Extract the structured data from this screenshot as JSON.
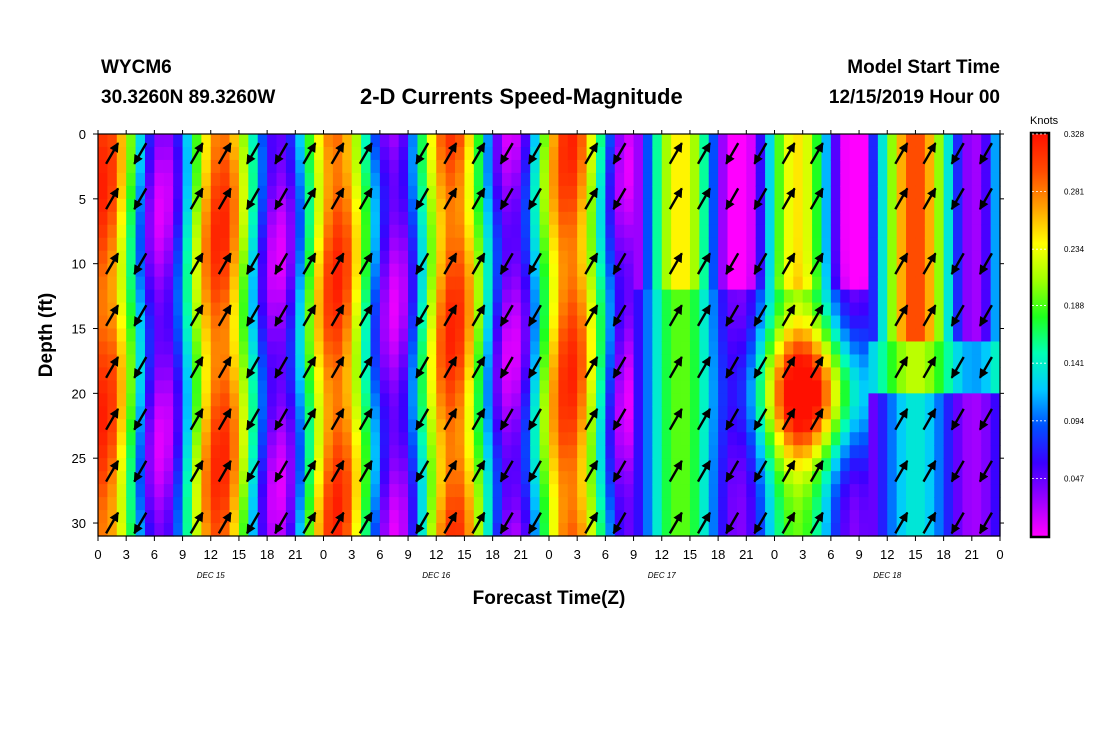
{
  "header": {
    "station": "WYCM6",
    "coords": "30.3260N 89.3260W",
    "title": "2-D Currents Speed-Magnitude",
    "start_label": "Model Start Time",
    "start_value": "12/15/2019 Hour 00"
  },
  "chart_data": {
    "type": "heatmap",
    "title": "2-D Currents Speed-Magnitude",
    "xlabel": "Forecast Time(Z)",
    "ylabel": "Depth (ft)",
    "x_ticks": [
      "0",
      "3",
      "6",
      "9",
      "12",
      "15",
      "18",
      "21",
      "0",
      "3",
      "6",
      "9",
      "12",
      "15",
      "18",
      "21",
      "0",
      "3",
      "6",
      "9",
      "12",
      "15",
      "18",
      "21",
      "0",
      "3",
      "6",
      "9",
      "12",
      "15",
      "18",
      "21",
      "0"
    ],
    "date_labels": [
      {
        "label": "DEC 15",
        "hour": 12
      },
      {
        "label": "DEC 16",
        "hour": 36
      },
      {
        "label": "DEC 17",
        "hour": 60
      },
      {
        "label": "DEC 18",
        "hour": 84
      }
    ],
    "xlim_hours": [
      0,
      96
    ],
    "y_ticks": [
      0,
      5,
      10,
      15,
      20,
      25,
      30
    ],
    "ylim": [
      0,
      31
    ],
    "y_inverted": true,
    "colorbar": {
      "unit": "Knots",
      "ticks": [
        "0.047",
        "0.094",
        "0.141",
        "0.188",
        "0.234",
        "0.281",
        "0.328"
      ],
      "range": [
        0.0,
        0.328
      ]
    },
    "arrow_depths": [
      1.5,
      5,
      10,
      14,
      18,
      22,
      26,
      30
    ],
    "arrow_hours": [
      1.5,
      4.5,
      10.5,
      13.5,
      16.5,
      19.5,
      22.5,
      25.5,
      28.5,
      34.5,
      37.5,
      40.5,
      43.5,
      46.5,
      52.5,
      55.5,
      61.5,
      64.5,
      67.5,
      70.5,
      73.5,
      76.5,
      85.5,
      88.5,
      91.5,
      94.5
    ],
    "colors": {
      "scale": [
        "#ff00ff",
        "#9a00ff",
        "#3a00ff",
        "#0050ff",
        "#00c8ff",
        "#00ffb4",
        "#1eff1e",
        "#a0ff00",
        "#ffff00",
        "#ffa000",
        "#ff4a00",
        "#ff1000"
      ]
    }
  }
}
